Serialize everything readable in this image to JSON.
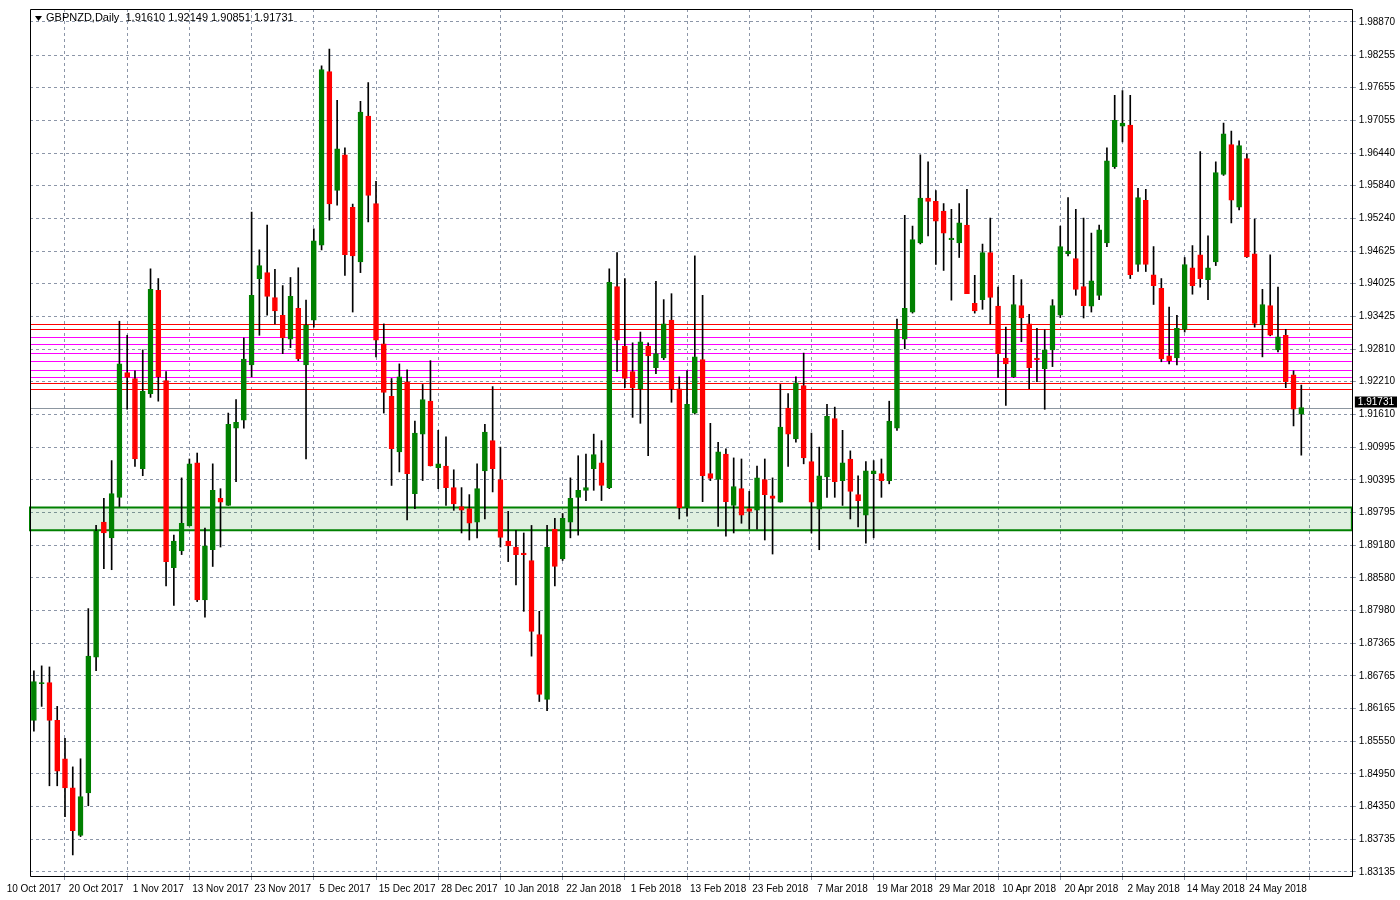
{
  "chart_data": {
    "type": "candlestick",
    "title": "GBPNZD,Daily  1.91610 1.92149 1.90851 1.91731",
    "categories": [
      "10 Oct 2017",
      null,
      null,
      null,
      null,
      null,
      null,
      null,
      "20 Oct 2017",
      null,
      null,
      null,
      null,
      null,
      null,
      null,
      "1 Nov 2017",
      null,
      null,
      null,
      null,
      null,
      null,
      null,
      "13 Nov 2017",
      null,
      null,
      null,
      null,
      null,
      null,
      null,
      "23 Nov 2017",
      null,
      null,
      null,
      null,
      null,
      null,
      null,
      "5 Dec 2017",
      null,
      null,
      null,
      null,
      null,
      null,
      null,
      "15 Dec 2017",
      null,
      null,
      null,
      null,
      null,
      null,
      null,
      "28 Dec 2017",
      null,
      null,
      null,
      null,
      null,
      null,
      null,
      "10 Jan 2018",
      null,
      null,
      null,
      null,
      null,
      null,
      null,
      "22 Jan 2018",
      null,
      null,
      null,
      null,
      null,
      null,
      null,
      "1 Feb 2018",
      null,
      null,
      null,
      null,
      null,
      null,
      null,
      "13 Feb 2018",
      null,
      null,
      null,
      null,
      null,
      null,
      null,
      "23 Feb 2018",
      null,
      null,
      null,
      null,
      null,
      null,
      null,
      "7 Mar 2018",
      null,
      null,
      null,
      null,
      null,
      null,
      null,
      "19 Mar 2018",
      null,
      null,
      null,
      null,
      null,
      null,
      null,
      "29 Mar 2018",
      null,
      null,
      null,
      null,
      null,
      null,
      null,
      "10 Apr 2018",
      null,
      null,
      null,
      null,
      null,
      null,
      null,
      "20 Apr 2018",
      null,
      null,
      null,
      null,
      null,
      null,
      null,
      "2 May 2018",
      null,
      null,
      null,
      null,
      null,
      null,
      null,
      "14 May 2018",
      null,
      null,
      null,
      null,
      null,
      null,
      null,
      "24 May 2018",
      null,
      null,
      null
    ],
    "ohlc": [
      [
        1.8594,
        1.8686,
        1.8574,
        1.8666
      ],
      [
        1.8662,
        1.8695,
        1.862,
        1.8664
      ],
      [
        1.8664,
        1.8693,
        1.8473,
        1.8594
      ],
      [
        1.8594,
        1.862,
        1.8473,
        1.85
      ],
      [
        1.8523,
        1.8561,
        1.8416,
        1.8469
      ],
      [
        1.8469,
        1.8508,
        1.8345,
        1.839
      ],
      [
        1.8381,
        1.8523,
        1.8379,
        1.8453
      ],
      [
        1.846,
        1.8801,
        1.8436,
        1.8713
      ],
      [
        1.8711,
        1.8955,
        1.8686,
        1.8944
      ],
      [
        1.8961,
        1.9005,
        1.8875,
        1.8941
      ],
      [
        1.8932,
        1.9075,
        1.8873,
        1.9014
      ],
      [
        1.9007,
        1.9333,
        1.899,
        1.9254
      ],
      [
        1.9238,
        1.9307,
        1.917,
        1.9229
      ],
      [
        1.9227,
        1.9241,
        1.9064,
        1.9078
      ],
      [
        1.906,
        1.928,
        1.9047,
        1.9203
      ],
      [
        1.9199,
        1.943,
        1.9192,
        1.9392
      ],
      [
        1.939,
        1.9412,
        1.9185,
        1.923
      ],
      [
        1.9223,
        1.924,
        1.8843,
        1.8888
      ],
      [
        1.8877,
        1.8937,
        1.8807,
        1.8926
      ],
      [
        1.8908,
        1.9043,
        1.8901,
        1.8959
      ],
      [
        1.8954,
        1.9078,
        1.8954,
        1.9069
      ],
      [
        1.9071,
        1.9089,
        1.8814,
        1.8817
      ],
      [
        1.8817,
        1.895,
        1.8785,
        1.8917
      ],
      [
        1.891,
        1.9069,
        1.8879,
        1.902
      ],
      [
        1.9005,
        1.9023,
        1.8915,
        1.8998
      ],
      [
        1.8992,
        1.9163,
        1.8992,
        1.9142
      ],
      [
        1.9135,
        1.9188,
        1.9036,
        1.9146
      ],
      [
        1.915,
        1.9302,
        1.9135,
        1.9263
      ],
      [
        1.9252,
        1.9535,
        1.923,
        1.9381
      ],
      [
        1.9412,
        1.9465,
        1.9307,
        1.9436
      ],
      [
        1.9423,
        1.9511,
        1.9344,
        1.9379
      ],
      [
        1.9377,
        1.9429,
        1.9328,
        1.9352
      ],
      [
        1.9344,
        1.9399,
        1.9273,
        1.9302
      ],
      [
        1.93,
        1.9414,
        1.9284,
        1.9379
      ],
      [
        1.9357,
        1.9432,
        1.926,
        1.9263
      ],
      [
        1.9252,
        1.9372,
        1.9078,
        1.9326
      ],
      [
        1.9335,
        1.9504,
        1.9322,
        1.9482
      ],
      [
        1.9474,
        1.9806,
        1.9465,
        1.9799
      ],
      [
        1.9795,
        1.9837,
        1.952,
        1.955
      ],
      [
        1.9575,
        1.9742,
        1.9548,
        1.9652
      ],
      [
        1.9641,
        1.9654,
        1.9418,
        1.9456
      ],
      [
        1.9544,
        1.955,
        1.935,
        1.9454
      ],
      [
        1.9443,
        1.974,
        1.9423,
        1.972
      ],
      [
        1.9713,
        1.9775,
        1.9517,
        1.9566
      ],
      [
        1.9551,
        1.9592,
        1.9267,
        1.9298
      ],
      [
        1.9291,
        1.9328,
        1.9163,
        1.9201
      ],
      [
        1.9194,
        1.9227,
        1.9029,
        1.9097
      ],
      [
        1.9091,
        1.9254,
        1.9054,
        1.923
      ],
      [
        1.9221,
        1.9243,
        1.8965,
        1.9051
      ],
      [
        1.9014,
        1.9148,
        1.8986,
        1.9126
      ],
      [
        1.9124,
        1.9216,
        1.9038,
        1.9188
      ],
      [
        1.9185,
        1.926,
        1.9065,
        1.9065
      ],
      [
        1.9062,
        1.9131,
        1.9023,
        1.9069
      ],
      [
        1.9065,
        1.9119,
        1.8992,
        1.9025
      ],
      [
        1.9025,
        1.9058,
        1.8983,
        1.8995
      ],
      [
        1.899,
        1.9025,
        1.8941,
        1.8983
      ],
      [
        1.8986,
        1.9012,
        1.8928,
        1.8959
      ],
      [
        1.8961,
        1.9069,
        1.8932,
        1.9023
      ],
      [
        1.9056,
        1.9142,
        1.8967,
        1.9128
      ],
      [
        1.9112,
        1.9212,
        1.9017,
        1.906
      ],
      [
        1.904,
        1.91,
        1.8915,
        1.8933
      ],
      [
        1.8926,
        1.8981,
        1.8888,
        1.8917
      ],
      [
        1.8915,
        1.8946,
        1.8845,
        1.8901
      ],
      [
        1.8904,
        1.8941,
        1.8796,
        1.8901
      ],
      [
        1.889,
        1.8955,
        1.8713,
        1.8759
      ],
      [
        1.8753,
        1.8796,
        1.8629,
        1.8642
      ],
      [
        1.8633,
        1.8955,
        1.8612,
        1.8915
      ],
      [
        1.8948,
        1.8968,
        1.8843,
        1.8879
      ],
      [
        1.8893,
        1.8977,
        1.889,
        1.8968
      ],
      [
        1.8961,
        1.9043,
        1.8932,
        1.9005
      ],
      [
        1.9007,
        1.9084,
        1.8937,
        1.902
      ],
      [
        1.902,
        1.9087,
        1.9001,
        1.9025
      ],
      [
        1.906,
        1.9124,
        1.902,
        1.9086
      ],
      [
        1.9071,
        1.9112,
        1.9001,
        1.9029
      ],
      [
        1.9025,
        1.943,
        1.9023,
        1.9405
      ],
      [
        1.9397,
        1.946,
        1.924,
        1.9298
      ],
      [
        1.9287,
        1.9412,
        1.921,
        1.9227
      ],
      [
        1.924,
        1.9293,
        1.9155,
        1.921
      ],
      [
        1.9208,
        1.9313,
        1.9144,
        1.9295
      ],
      [
        1.9287,
        1.9293,
        1.9084,
        1.9269
      ],
      [
        1.9247,
        1.9407,
        1.9236,
        1.9273
      ],
      [
        1.9265,
        1.9373,
        1.9262,
        1.9328
      ],
      [
        1.9335,
        1.9384,
        1.9183,
        1.9208
      ],
      [
        1.9208,
        1.923,
        1.8967,
        1.8988
      ],
      [
        1.8988,
        1.9241,
        1.8972,
        1.9179
      ],
      [
        1.9163,
        1.9454,
        1.9161,
        1.9267
      ],
      [
        1.9262,
        1.9381,
        1.8999,
        1.9047
      ],
      [
        1.9051,
        1.9144,
        1.9038,
        1.9042
      ],
      [
        1.904,
        1.9109,
        1.8953,
        1.9091
      ],
      [
        1.9087,
        1.9097,
        1.8935,
        1.8999
      ],
      [
        1.8992,
        1.908,
        1.8941,
        1.9027
      ],
      [
        1.9023,
        1.9078,
        1.8959,
        1.8974
      ],
      [
        1.8986,
        1.9018,
        1.8948,
        1.8981
      ],
      [
        1.8983,
        1.9065,
        1.8948,
        1.9043
      ],
      [
        1.904,
        1.9078,
        1.8928,
        1.9012
      ],
      [
        1.901,
        1.9043,
        1.8902,
        1.9005
      ],
      [
        1.8998,
        1.9216,
        1.8998,
        1.9137
      ],
      [
        1.9172,
        1.9199,
        1.9064,
        1.9124
      ],
      [
        1.9115,
        1.923,
        1.9109,
        1.9219
      ],
      [
        1.9214,
        1.9274,
        1.9069,
        1.908
      ],
      [
        1.9073,
        1.9126,
        1.8941,
        1.8998
      ],
      [
        1.8985,
        1.91,
        1.891,
        1.9047
      ],
      [
        1.9045,
        1.9179,
        1.9007,
        1.9157
      ],
      [
        1.9153,
        1.9174,
        1.9007,
        1.9036
      ],
      [
        1.9038,
        1.9131,
        1.8992,
        1.9071
      ],
      [
        1.9078,
        1.9093,
        1.8967,
        1.9018
      ],
      [
        1.9012,
        1.9047,
        1.8952,
        1.9001
      ],
      [
        1.8974,
        1.9073,
        1.8922,
        1.9056
      ],
      [
        1.9051,
        1.9075,
        1.8932,
        1.9056
      ],
      [
        1.9051,
        1.9078,
        1.9007,
        1.9038
      ],
      [
        1.9038,
        1.9185,
        1.9032,
        1.9148
      ],
      [
        1.9135,
        1.9337,
        1.9131,
        1.9318
      ],
      [
        1.93,
        1.9529,
        1.9282,
        1.9357
      ],
      [
        1.935,
        1.9509,
        1.9348,
        1.9484
      ],
      [
        1.9478,
        1.9641,
        1.9476,
        1.9561
      ],
      [
        1.9561,
        1.9628,
        1.9491,
        1.9555
      ],
      [
        1.9555,
        1.9575,
        1.9438,
        1.9518
      ],
      [
        1.9537,
        1.9551,
        1.9427,
        1.9496
      ],
      [
        1.9484,
        1.954,
        1.9372,
        1.9487
      ],
      [
        1.9478,
        1.9551,
        1.9451,
        1.9515
      ],
      [
        1.9511,
        1.9577,
        1.9384,
        1.9384
      ],
      [
        1.9366,
        1.9418,
        1.9348,
        1.9352
      ],
      [
        1.9373,
        1.9476,
        1.9355,
        1.946
      ],
      [
        1.946,
        1.9524,
        1.9328,
        1.9377
      ],
      [
        1.9361,
        1.9396,
        1.9229,
        1.9273
      ],
      [
        1.9265,
        1.9322,
        1.9177,
        1.9254
      ],
      [
        1.923,
        1.9418,
        1.9229,
        1.9364
      ],
      [
        1.9362,
        1.941,
        1.9295,
        1.9339
      ],
      [
        1.9328,
        1.9346,
        1.9208,
        1.9247
      ],
      [
        1.9265,
        1.932,
        1.9221,
        1.9262
      ],
      [
        1.9245,
        1.9317,
        1.917,
        1.928
      ],
      [
        1.928,
        1.9373,
        1.9249,
        1.9362
      ],
      [
        1.9344,
        1.9509,
        1.934,
        1.9471
      ],
      [
        1.9458,
        1.9562,
        1.9454,
        1.9463
      ],
      [
        1.9449,
        1.954,
        1.9381,
        1.9392
      ],
      [
        1.9397,
        1.9524,
        1.9339,
        1.9362
      ],
      [
        1.9361,
        1.9496,
        1.935,
        1.9408
      ],
      [
        1.9381,
        1.9511,
        1.9373,
        1.9502
      ],
      [
        1.9478,
        1.9654,
        1.9471,
        1.963
      ],
      [
        1.9619,
        1.9751,
        1.9616,
        1.9705
      ],
      [
        1.9694,
        1.976,
        1.9665,
        1.97
      ],
      [
        1.9696,
        1.9751,
        1.9412,
        1.9419
      ],
      [
        1.9438,
        1.9579,
        1.9425,
        1.9562
      ],
      [
        1.9557,
        1.9577,
        1.9425,
        1.9438
      ],
      [
        1.9419,
        1.9471,
        1.9364,
        1.9399
      ],
      [
        1.9394,
        1.9412,
        1.9258,
        1.9263
      ],
      [
        1.9269,
        1.9359,
        1.9254,
        1.926
      ],
      [
        1.9265,
        1.9344,
        1.9252,
        1.932
      ],
      [
        1.9318,
        1.9451,
        1.9313,
        1.9438
      ],
      [
        1.9432,
        1.9473,
        1.9383,
        1.9399
      ],
      [
        1.9456,
        1.9647,
        1.9396,
        1.9412
      ],
      [
        1.941,
        1.9491,
        1.9373,
        1.9432
      ],
      [
        1.9443,
        1.9628,
        1.9436,
        1.9608
      ],
      [
        1.9605,
        1.97,
        1.9603,
        1.968
      ],
      [
        1.966,
        1.9685,
        1.9515,
        1.9557
      ],
      [
        1.9544,
        1.9667,
        1.9539,
        1.9658
      ],
      [
        1.9634,
        1.9643,
        1.9451,
        1.9452
      ],
      [
        1.9458,
        1.9522,
        1.9322,
        1.9329
      ],
      [
        1.9326,
        1.9392,
        1.9267,
        1.9364
      ],
      [
        1.9362,
        1.9456,
        1.9306,
        1.9307
      ],
      [
        1.928,
        1.9396,
        1.9276,
        1.9304
      ],
      [
        1.9307,
        1.9318,
        1.921,
        1.9221
      ],
      [
        1.9234,
        1.9241,
        1.9139,
        1.917
      ],
      [
        1.9161,
        1.92149,
        1.90851,
        1.91731
      ]
    ],
    "ylim": [
      1.8306,
      1.9911
    ],
    "yticks": [
      {
        "value": 1.9887,
        "label": "1.98870"
      },
      {
        "value": 1.98255,
        "label": "1.98255"
      },
      {
        "value": 1.97655,
        "label": "1.97655"
      },
      {
        "value": 1.97055,
        "label": "1.97055"
      },
      {
        "value": 1.9644,
        "label": "1.96440"
      },
      {
        "value": 1.9584,
        "label": "1.95840"
      },
      {
        "value": 1.9524,
        "label": "1.95240"
      },
      {
        "value": 1.94625,
        "label": "1.94625"
      },
      {
        "value": 1.94025,
        "label": "1.94025"
      },
      {
        "value": 1.93425,
        "label": "1.93425"
      },
      {
        "value": 1.9281,
        "label": "1.92810"
      },
      {
        "value": 1.9221,
        "label": "1.92210"
      },
      {
        "value": 1.9161,
        "label": "1.91610"
      },
      {
        "value": 1.90995,
        "label": "1.90995"
      },
      {
        "value": 1.90395,
        "label": "1.90395"
      },
      {
        "value": 1.89795,
        "label": "1.89795"
      },
      {
        "value": 1.8918,
        "label": "1.89180"
      },
      {
        "value": 1.8858,
        "label": "1.88580"
      },
      {
        "value": 1.8798,
        "label": "1.87980"
      },
      {
        "value": 1.87365,
        "label": "1.87365"
      },
      {
        "value": 1.86765,
        "label": "1.86765"
      },
      {
        "value": 1.86165,
        "label": "1.86165"
      },
      {
        "value": 1.8555,
        "label": "1.85550"
      },
      {
        "value": 1.8495,
        "label": "1.84950"
      },
      {
        "value": 1.8435,
        "label": "1.84350"
      },
      {
        "value": 1.83735,
        "label": "1.83735"
      },
      {
        "value": 1.83135,
        "label": "1.83135"
      }
    ],
    "grid": true,
    "ref_lines": [
      {
        "axis": "y",
        "value": 1.91731,
        "label": "1.91731",
        "color": "#8c96a0"
      },
      {
        "axis": "y",
        "value": 1.9328,
        "color": "#ff0000"
      },
      {
        "axis": "y",
        "value": 1.9318,
        "color": "#ff0000"
      },
      {
        "axis": "y",
        "value": 1.9304,
        "color": "#ff00ff"
      },
      {
        "axis": "y",
        "value": 1.9291,
        "color": "#ff00ff"
      },
      {
        "axis": "y",
        "value": 1.9274,
        "color": "#ff00ff"
      },
      {
        "axis": "y",
        "value": 1.926,
        "color": "#ff00ff"
      },
      {
        "axis": "y",
        "value": 1.9243,
        "color": "#ff00ff"
      },
      {
        "axis": "y",
        "value": 1.923,
        "color": "#ff00ff"
      },
      {
        "axis": "y",
        "value": 1.9219,
        "color": "#ff0000"
      },
      {
        "axis": "y",
        "value": 1.9207,
        "color": "#ff0000"
      }
    ],
    "bands": [
      {
        "axis": "y",
        "from": 1.8946,
        "to": 1.8988,
        "color": "#008000"
      }
    ]
  }
}
